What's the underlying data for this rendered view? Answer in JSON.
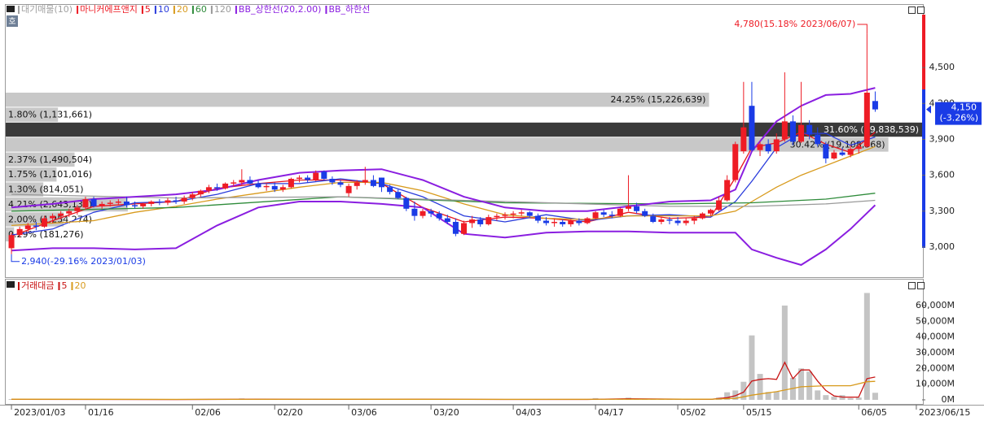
{
  "chart_data": [
    {
      "type": "candlestick",
      "name": "마니커에프앤지",
      "mode_label": "호",
      "up_color": "#ee1c25",
      "down_color": "#1a3be6",
      "x": [
        0,
        1,
        2,
        3,
        4,
        5,
        6,
        7,
        8,
        9,
        10,
        11,
        12,
        13,
        14,
        15,
        16,
        17,
        18,
        19,
        20,
        21,
        22,
        23,
        24,
        25,
        26,
        27,
        28,
        29,
        30,
        31,
        32,
        33,
        34,
        35,
        36,
        37,
        38,
        39,
        40,
        41,
        42,
        43,
        44,
        45,
        46,
        47,
        48,
        49,
        50,
        51,
        52,
        53,
        54,
        55,
        56,
        57,
        58,
        59,
        60,
        61,
        62,
        63,
        64,
        65,
        66,
        67,
        68,
        69,
        70,
        71,
        72,
        73,
        74,
        75,
        76,
        77,
        78,
        79,
        80,
        81,
        82,
        83,
        84,
        85,
        86,
        87,
        88,
        89,
        90,
        91,
        92,
        93,
        94,
        95,
        96,
        97,
        98,
        99,
        100,
        101,
        102,
        103,
        104,
        105
      ],
      "xlim": [
        -0.7,
        110.7
      ],
      "open": [
        2990,
        3100,
        3150,
        3180,
        3170,
        3240,
        3260,
        3280,
        3300,
        3330,
        3400,
        3340,
        3360,
        3370,
        3380,
        3350,
        3340,
        3360,
        3380,
        3370,
        3390,
        3380,
        3410,
        3440,
        3470,
        3500,
        3490,
        3530,
        3540,
        3560,
        3530,
        3500,
        3510,
        3480,
        3500,
        3570,
        3580,
        3560,
        3630,
        3570,
        3540,
        3450,
        3510,
        3540,
        3560,
        3580,
        3500,
        3460,
        3410,
        3320,
        3260,
        3300,
        3280,
        3240,
        3210,
        3110,
        3200,
        3230,
        3190,
        3250,
        3260,
        3270,
        3280,
        3290,
        3260,
        3220,
        3200,
        3210,
        3190,
        3220,
        3200,
        3240,
        3290,
        3270,
        3260,
        3320,
        3340,
        3300,
        3260,
        3210,
        3230,
        3220,
        3200,
        3220,
        3240,
        3280,
        3310,
        3390,
        3560,
        3800,
        4180,
        3810,
        3860,
        3800,
        3900,
        4050,
        3880,
        4020,
        3940,
        3860,
        3740,
        3790,
        3770,
        3820,
        3840,
        4220
      ],
      "high": [
        3120,
        3170,
        3200,
        3210,
        3260,
        3280,
        3300,
        3320,
        3350,
        3420,
        3420,
        3380,
        3390,
        3400,
        3420,
        3380,
        3370,
        3390,
        3400,
        3410,
        3420,
        3430,
        3460,
        3480,
        3520,
        3530,
        3540,
        3560,
        3650,
        3590,
        3560,
        3530,
        3540,
        3520,
        3580,
        3600,
        3600,
        3640,
        3640,
        3590,
        3560,
        3530,
        3560,
        3670,
        3600,
        3580,
        3520,
        3480,
        3420,
        3380,
        3320,
        3320,
        3300,
        3270,
        3240,
        3220,
        3260,
        3250,
        3270,
        3280,
        3290,
        3300,
        3310,
        3300,
        3280,
        3250,
        3240,
        3230,
        3230,
        3240,
        3250,
        3300,
        3310,
        3300,
        3330,
        3600,
        3370,
        3320,
        3280,
        3250,
        3250,
        3250,
        3240,
        3260,
        3290,
        3320,
        3420,
        3600,
        3880,
        4380,
        4380,
        3880,
        3900,
        3950,
        4460,
        4100,
        4380,
        4060,
        4000,
        3880,
        3810,
        3830,
        3850,
        3860,
        4780,
        4300
      ],
      "low": [
        2940,
        3080,
        3120,
        3140,
        3160,
        3200,
        3230,
        3250,
        3270,
        3310,
        3330,
        3320,
        3340,
        3350,
        3330,
        3320,
        3320,
        3340,
        3350,
        3350,
        3360,
        3360,
        3390,
        3420,
        3450,
        3470,
        3480,
        3510,
        3520,
        3520,
        3490,
        3470,
        3460,
        3460,
        3490,
        3540,
        3540,
        3550,
        3560,
        3520,
        3500,
        3420,
        3480,
        3520,
        3500,
        3460,
        3440,
        3400,
        3300,
        3220,
        3240,
        3250,
        3220,
        3190,
        3090,
        3100,
        3160,
        3170,
        3180,
        3220,
        3230,
        3240,
        3260,
        3250,
        3200,
        3180,
        3170,
        3170,
        3170,
        3180,
        3190,
        3230,
        3250,
        3240,
        3250,
        3300,
        3280,
        3250,
        3200,
        3190,
        3190,
        3180,
        3180,
        3190,
        3230,
        3260,
        3300,
        3380,
        3540,
        3780,
        3800,
        3760,
        3780,
        3780,
        3880,
        3850,
        3870,
        3900,
        3840,
        3700,
        3730,
        3760,
        3750,
        3780,
        3830,
        4130
      ],
      "close": [
        3100,
        3150,
        3180,
        3170,
        3240,
        3260,
        3280,
        3300,
        3330,
        3400,
        3340,
        3360,
        3370,
        3380,
        3350,
        3340,
        3360,
        3380,
        3370,
        3390,
        3380,
        3410,
        3440,
        3470,
        3500,
        3490,
        3530,
        3540,
        3560,
        3530,
        3500,
        3510,
        3480,
        3500,
        3570,
        3580,
        3560,
        3620,
        3570,
        3540,
        3520,
        3510,
        3540,
        3560,
        3510,
        3500,
        3460,
        3410,
        3320,
        3260,
        3300,
        3280,
        3240,
        3210,
        3110,
        3200,
        3230,
        3190,
        3250,
        3260,
        3270,
        3280,
        3290,
        3260,
        3220,
        3200,
        3210,
        3190,
        3220,
        3200,
        3240,
        3290,
        3270,
        3260,
        3320,
        3340,
        3300,
        3260,
        3210,
        3230,
        3220,
        3200,
        3220,
        3240,
        3280,
        3310,
        3390,
        3560,
        3860,
        4000,
        3810,
        3860,
        3800,
        3900,
        4050,
        3880,
        4020,
        3940,
        3860,
        3740,
        3790,
        3770,
        3820,
        3840,
        4290,
        4150
      ],
      "ylim": [
        2755,
        5010
      ],
      "yticks": [
        {
          "value": 3000,
          "label": "3,000"
        },
        {
          "value": 3300,
          "label": "3,300"
        },
        {
          "value": 3600,
          "label": "3,600"
        },
        {
          "value": 3900,
          "label": "3,900"
        },
        {
          "value": 4200,
          "label": "4,200"
        },
        {
          "value": 4500,
          "label": "4,500"
        }
      ],
      "lines": [
        {
          "name": "5",
          "color": "#e8141c",
          "x": [
            0,
            5,
            10,
            15,
            20,
            25,
            30,
            35,
            40,
            45,
            50,
            55,
            60,
            65,
            70,
            75,
            80,
            85,
            88,
            90,
            93,
            96,
            99,
            102,
            105
          ],
          "values": [
            3090,
            3220,
            3340,
            3360,
            3380,
            3490,
            3530,
            3560,
            3560,
            3530,
            3330,
            3210,
            3250,
            3240,
            3210,
            3290,
            3240,
            3250,
            3580,
            3830,
            3870,
            3960,
            3860,
            3790,
            3960
          ]
        },
        {
          "name": "10",
          "color": "#2a3cdc",
          "x": [
            0,
            5,
            10,
            15,
            20,
            25,
            30,
            35,
            40,
            45,
            50,
            55,
            60,
            65,
            70,
            75,
            80,
            85,
            88,
            90,
            93,
            96,
            99,
            102,
            105
          ],
          "values": [
            3100,
            3150,
            3290,
            3370,
            3380,
            3440,
            3530,
            3530,
            3570,
            3530,
            3420,
            3260,
            3210,
            3270,
            3220,
            3260,
            3270,
            3250,
            3380,
            3550,
            3830,
            3950,
            3950,
            3850,
            3920
          ]
        },
        {
          "name": "20",
          "color": "#d89a1c",
          "x": [
            0,
            5,
            10,
            15,
            20,
            25,
            30,
            35,
            40,
            45,
            50,
            55,
            60,
            65,
            70,
            75,
            80,
            85,
            88,
            90,
            93,
            96,
            99,
            102,
            105
          ],
          "values": [
            3180,
            3200,
            3220,
            3290,
            3340,
            3400,
            3450,
            3500,
            3540,
            3540,
            3470,
            3360,
            3270,
            3240,
            3230,
            3260,
            3260,
            3260,
            3300,
            3380,
            3500,
            3600,
            3680,
            3760,
            3840
          ]
        },
        {
          "name": "60",
          "color": "#2e8b3a",
          "x": [
            0,
            20,
            40,
            60,
            80,
            90,
            99,
            105
          ],
          "values": [
            3300,
            3330,
            3420,
            3370,
            3360,
            3370,
            3400,
            3450
          ]
        },
        {
          "name": "120",
          "color": "#9a9a9a",
          "x": [
            0,
            20,
            40,
            60,
            80,
            90,
            99,
            105
          ],
          "values": [
            3440,
            3410,
            3420,
            3380,
            3340,
            3340,
            3360,
            3390
          ]
        },
        {
          "name": "BB_상한선(20,2.00)",
          "color": "#8a1ee0",
          "x": [
            0,
            5,
            10,
            15,
            20,
            25,
            30,
            35,
            40,
            45,
            50,
            55,
            60,
            65,
            70,
            75,
            80,
            85,
            88,
            90,
            93,
            96,
            99,
            102,
            105
          ],
          "values": [
            3330,
            3360,
            3400,
            3420,
            3440,
            3480,
            3560,
            3620,
            3640,
            3650,
            3560,
            3420,
            3330,
            3300,
            3300,
            3340,
            3380,
            3390,
            3480,
            3800,
            4050,
            4180,
            4270,
            4280,
            4330
          ]
        },
        {
          "name": "BB_하한선",
          "color": "#8a1ee0",
          "x": [
            0,
            5,
            10,
            15,
            20,
            25,
            30,
            35,
            40,
            45,
            50,
            55,
            60,
            65,
            70,
            75,
            80,
            85,
            88,
            90,
            93,
            96,
            99,
            102,
            105
          ],
          "values": [
            2970,
            2990,
            2990,
            2980,
            2990,
            3180,
            3330,
            3380,
            3380,
            3360,
            3330,
            3110,
            3080,
            3120,
            3130,
            3130,
            3120,
            3120,
            3120,
            2980,
            2910,
            2850,
            2980,
            3150,
            3350
          ]
        }
      ],
      "volume_profile": {
        "name": "대기매물(10)",
        "color": "#c8c8c8",
        "max_color": "#3a3a3a",
        "bins": [
          4290,
          4165,
          4040,
          3915,
          3790,
          3665,
          3540,
          3415,
          3290,
          3165,
          3040
        ],
        "values": [
          15226639,
          1131661,
          19838539,
          19108568,
          1490504,
          1101016,
          814051,
          2643131,
          1254274,
          181276
        ],
        "value_labels": [
          "24.25% (15,226,639)",
          "1.80% (1,131,661)",
          "31.60% (19,838,539)",
          "30.42% (19,108,568)",
          "2.37% (1,490,504)",
          "1.75% (1,101,016)",
          "1.30% (814,051)",
          "4.21% (2,643,131)",
          "2.00% (1,254,274)",
          "0.29% (181,276)"
        ]
      },
      "max_label": "4,780(15.18% 2023/06/07)",
      "min_label": "2,940(-29.16% 2023/01/03)",
      "last_label": "4,150",
      "last_change": "(-3.26%)"
    },
    {
      "type": "bar",
      "name": "거래대금",
      "name_color": "#c81414",
      "color": "#c4c4c4",
      "values": [
        500,
        300,
        250,
        200,
        180,
        220,
        260,
        240,
        300,
        420,
        350,
        260,
        200,
        180,
        220,
        190,
        170,
        210,
        240,
        200,
        180,
        220,
        260,
        300,
        320,
        280,
        250,
        300,
        900,
        400,
        260,
        240,
        220,
        250,
        380,
        300,
        260,
        420,
        500,
        300,
        240,
        280,
        300,
        700,
        450,
        380,
        300,
        260,
        420,
        600,
        350,
        280,
        250,
        300,
        550,
        400,
        300,
        260,
        280,
        240,
        220,
        200,
        230,
        210,
        260,
        240,
        200,
        190,
        210,
        230,
        300,
        1100,
        500,
        400,
        700,
        1400,
        600,
        350,
        300,
        260,
        240,
        220,
        260,
        300,
        400,
        600,
        1500,
        4800,
        6000,
        11500,
        41000,
        16500,
        5000,
        5200,
        60000,
        14000,
        20000,
        18000,
        6000,
        3000,
        2000,
        3000,
        1000,
        1500,
        68000,
        4500
      ],
      "ylim": [
        -2600,
        76000
      ],
      "yticks": [
        {
          "value": 0,
          "label": "0M"
        },
        {
          "value": 10000,
          "label": "10,000M"
        },
        {
          "value": 20000,
          "label": "20,000M"
        },
        {
          "value": 30000,
          "label": "30,000M"
        },
        {
          "value": 40000,
          "label": "40,000M"
        },
        {
          "value": 50000,
          "label": "50,000M"
        },
        {
          "value": 60000,
          "label": "60,000M"
        }
      ],
      "lines": [
        {
          "name": "5",
          "color": "#c81414",
          "x": [
            0,
            10,
            20,
            30,
            40,
            50,
            60,
            70,
            75,
            80,
            85,
            87,
            88,
            89,
            90,
            91,
            92,
            93,
            94,
            95,
            96,
            97,
            98,
            99,
            100,
            101,
            102,
            103,
            104,
            105
          ],
          "values": [
            300,
            260,
            200,
            400,
            350,
            380,
            250,
            260,
            700,
            500,
            300,
            1400,
            2600,
            4900,
            12000,
            13000,
            13500,
            13000,
            23800,
            13500,
            19000,
            19000,
            12000,
            6000,
            2500,
            1800,
            1700,
            1800,
            13500,
            14500
          ]
        },
        {
          "name": "20",
          "color": "#d89a1c",
          "x": [
            0,
            20,
            40,
            60,
            80,
            85,
            88,
            90,
            93,
            96,
            99,
            102,
            104,
            105
          ],
          "values": [
            400,
            300,
            380,
            300,
            400,
            400,
            900,
            3000,
            5200,
            8300,
            9000,
            9000,
            11500,
            11800
          ]
        }
      ],
      "xticks": [
        {
          "value": 0,
          "label": "2023/01/03"
        },
        {
          "value": 9,
          "label": "01/16"
        },
        {
          "value": 22,
          "label": "02/06"
        },
        {
          "value": 32,
          "label": "02/20"
        },
        {
          "value": 41,
          "label": "03/06"
        },
        {
          "value": 51,
          "label": "03/20"
        },
        {
          "value": 61,
          "label": "04/03"
        },
        {
          "value": 71,
          "label": "04/17"
        },
        {
          "value": 81,
          "label": "05/02"
        },
        {
          "value": 89,
          "label": "05/15"
        },
        {
          "value": 103,
          "label": "06/05"
        },
        {
          "value": 110,
          "label": "2023/06/15"
        }
      ]
    }
  ]
}
